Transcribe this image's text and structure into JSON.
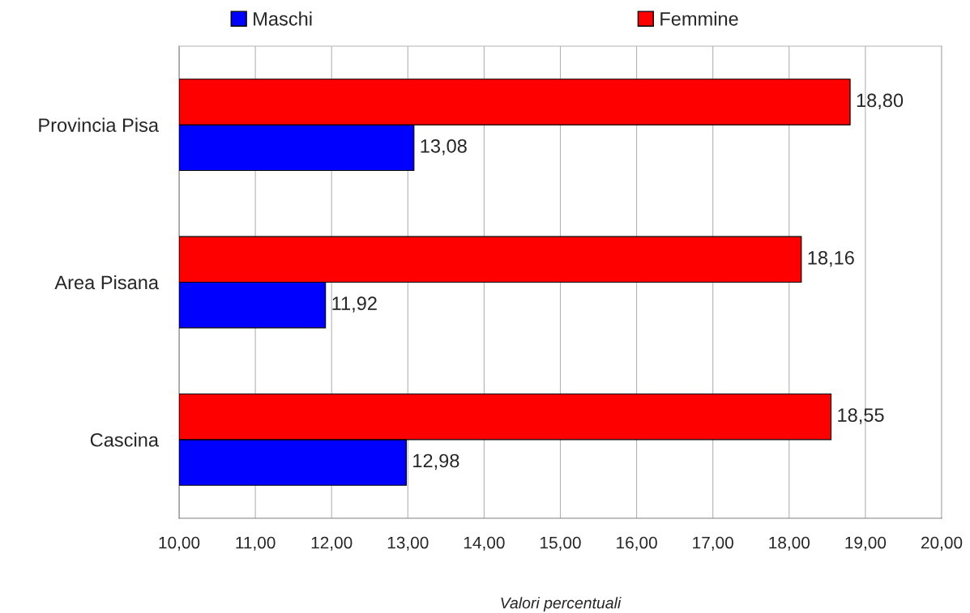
{
  "chart_data": {
    "type": "bar",
    "orientation": "horizontal",
    "xlabel": "Valori percentuali",
    "categories": [
      "Provincia Pisa",
      "Area Pisana",
      "Cascina"
    ],
    "series": [
      {
        "name": "Maschi",
        "color": "#0000ff",
        "values": [
          13.08,
          11.92,
          12.98
        ],
        "value_labels": [
          "13,08",
          "11,92",
          "12,98"
        ]
      },
      {
        "name": "Femmine",
        "color": "#ff0000",
        "values": [
          18.8,
          18.16,
          18.55
        ],
        "value_labels": [
          "18,80",
          "18,16",
          "18,55"
        ]
      }
    ],
    "xlim": [
      10,
      20
    ],
    "xticks": [
      {
        "value": 10,
        "label": "10,00"
      },
      {
        "value": 11,
        "label": "11,00"
      },
      {
        "value": 12,
        "label": "12,00"
      },
      {
        "value": 13,
        "label": "13,00"
      },
      {
        "value": 14,
        "label": "14,00"
      },
      {
        "value": 15,
        "label": "15,00"
      },
      {
        "value": 16,
        "label": "16,00"
      },
      {
        "value": 17,
        "label": "17,00"
      },
      {
        "value": 18,
        "label": "18,00"
      },
      {
        "value": 19,
        "label": "19,00"
      },
      {
        "value": 20,
        "label": "20,00"
      }
    ],
    "grid": "x",
    "legend": "top"
  }
}
